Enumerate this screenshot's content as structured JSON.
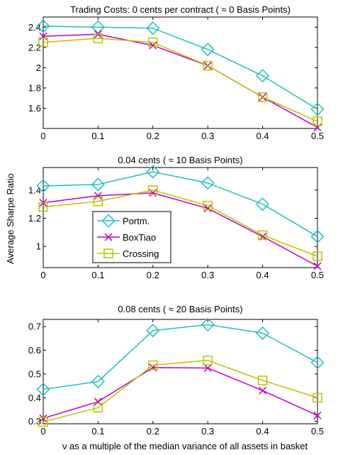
{
  "figure": {
    "shared_ylabel": "Average Sharpe Ratio",
    "shared_xlabel": "ν as a multiple of the median variance of all assets in basket"
  },
  "legend": {
    "placement": "inside-left of middle panel",
    "entries": [
      "Portm.",
      "BoxTiao",
      "Crossing"
    ]
  },
  "colors": {
    "Portm.": "#1fc0c0",
    "BoxTiao": "#c000c0",
    "Crossing": "#c0c000"
  },
  "chart_data": [
    {
      "type": "line",
      "title": "Trading Costs: 0 cents per contract ( ≈ 0 Basis Points)",
      "x": [
        0,
        0.1,
        0.2,
        0.3,
        0.4,
        0.5
      ],
      "x_ticks": [
        "0",
        "0.1",
        "0.2",
        "0.3",
        "0.4",
        "0.5"
      ],
      "xlim": [
        0,
        0.5
      ],
      "ylim": [
        1.4,
        2.5
      ],
      "y_ticks": [
        "1.6",
        "1.8",
        "2",
        "2.2",
        "2.4"
      ],
      "y_tick_values": [
        1.6,
        1.8,
        2.0,
        2.2,
        2.4
      ],
      "series": [
        {
          "name": "Portm.",
          "marker": "diamond",
          "values": [
            2.41,
            2.4,
            2.39,
            2.18,
            1.92,
            1.59
          ]
        },
        {
          "name": "BoxTiao",
          "marker": "x",
          "values": [
            2.31,
            2.33,
            2.22,
            2.02,
            1.71,
            1.41
          ]
        },
        {
          "name": "Crossing",
          "marker": "square",
          "values": [
            2.25,
            2.29,
            2.25,
            2.02,
            1.71,
            1.47
          ]
        }
      ]
    },
    {
      "type": "line",
      "title": "0.04 cents ( ≈ 10 Basis Points)",
      "x": [
        0,
        0.1,
        0.2,
        0.3,
        0.4,
        0.5
      ],
      "x_ticks": [
        "0",
        "0.1",
        "0.2",
        "0.3",
        "0.4",
        "0.5"
      ],
      "xlim": [
        0,
        0.5
      ],
      "ylim": [
        0.85,
        1.56
      ],
      "y_ticks": [
        "1",
        "1.2",
        "1.4"
      ],
      "y_tick_values": [
        1.0,
        1.2,
        1.4
      ],
      "series": [
        {
          "name": "Portm.",
          "marker": "diamond",
          "values": [
            1.43,
            1.44,
            1.53,
            1.45,
            1.3,
            1.07
          ]
        },
        {
          "name": "BoxTiao",
          "marker": "x",
          "values": [
            1.31,
            1.36,
            1.38,
            1.27,
            1.07,
            0.86
          ]
        },
        {
          "name": "Crossing",
          "marker": "square",
          "values": [
            1.28,
            1.32,
            1.4,
            1.29,
            1.08,
            0.93
          ]
        }
      ]
    },
    {
      "type": "line",
      "title": "0.08 cents ( ≈ 20 Basis Points)",
      "x": [
        0,
        0.1,
        0.2,
        0.3,
        0.4,
        0.5
      ],
      "x_ticks": [
        "0",
        "0.1",
        "0.2",
        "0.3",
        "0.4",
        "0.5"
      ],
      "xlim": [
        0,
        0.5
      ],
      "ylim": [
        0.29,
        0.73
      ],
      "y_ticks": [
        "0.3",
        "0.4",
        "0.5",
        "0.6",
        "0.7"
      ],
      "y_tick_values": [
        0.3,
        0.4,
        0.5,
        0.6,
        0.7
      ],
      "series": [
        {
          "name": "Portm.",
          "marker": "diamond",
          "values": [
            0.435,
            0.468,
            0.683,
            0.708,
            0.672,
            0.548
          ]
        },
        {
          "name": "BoxTiao",
          "marker": "x",
          "values": [
            0.313,
            0.383,
            0.527,
            0.525,
            0.43,
            0.325
          ]
        },
        {
          "name": "Crossing",
          "marker": "square",
          "values": [
            0.298,
            0.358,
            0.537,
            0.557,
            0.473,
            0.4
          ]
        }
      ]
    }
  ]
}
